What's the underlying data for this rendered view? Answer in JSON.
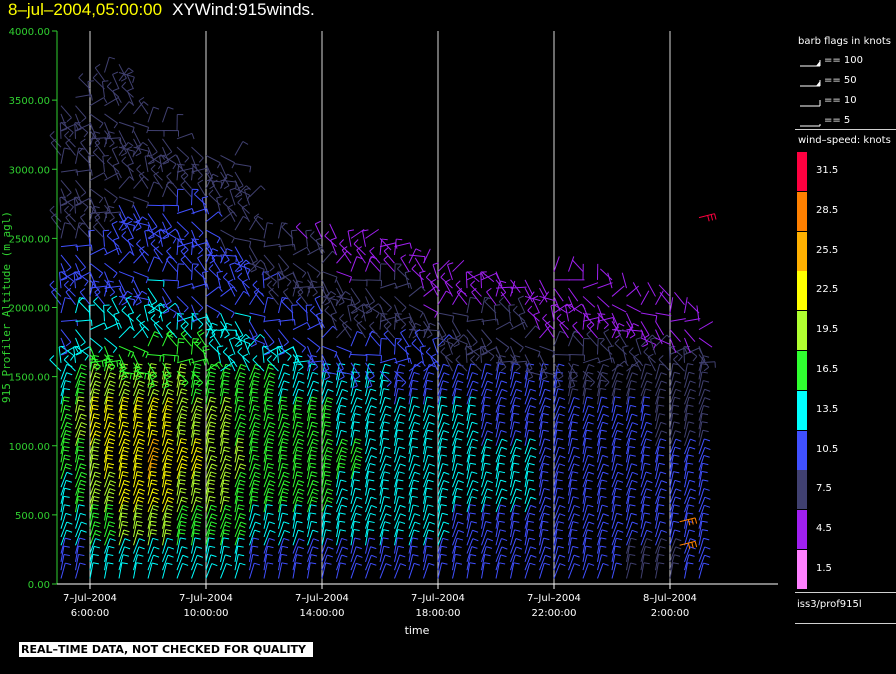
{
  "header": {
    "date_label": "8–jul–2004,05:00:00",
    "product_label": "XYWind:915winds."
  },
  "barb_legend": {
    "title": "barb flags in knots",
    "items": [
      {
        "label": "== 100",
        "value": 100
      },
      {
        "label": "== 50",
        "value": 50
      },
      {
        "label": "== 10",
        "value": 10
      },
      {
        "label": "== 5",
        "value": 5
      }
    ]
  },
  "speed_scale": {
    "title": "wind–speed: knots",
    "levels": [
      {
        "label": "31.5",
        "color": "#ff0040"
      },
      {
        "label": "28.5",
        "color": "#ff8000"
      },
      {
        "label": "25.5",
        "color": "#ffb000"
      },
      {
        "label": "22.5",
        "color": "#ffff00"
      },
      {
        "label": "19.5",
        "color": "#b0ff30"
      },
      {
        "label": "16.5",
        "color": "#30ff30"
      },
      {
        "label": "13.5",
        "color": "#00ffff"
      },
      {
        "label": "10.5",
        "color": "#4050ff"
      },
      {
        "label": "7.5",
        "color": "#404070"
      },
      {
        "label": "4.5",
        "color": "#a020f0"
      },
      {
        "label": "1.5",
        "color": "#ff80ff"
      }
    ]
  },
  "footer": {
    "source_label": "iss3/prof915l",
    "quality_banner": "REAL–TIME DATA, NOT CHECKED FOR QUALITY"
  },
  "chart_data": {
    "type": "wind-barb time-height",
    "ylabel": "915 Profiler Altitude (m agl)",
    "xlabel": "time",
    "ylim": [
      0,
      4000
    ],
    "yticks": [
      "0.00",
      "500.00",
      "1000.00",
      "1500.00",
      "2000.00",
      "2500.00",
      "3000.00",
      "3500.00",
      "4000.00"
    ],
    "xticks": [
      {
        "date": "7–Jul–2004",
        "time": "6:00:00"
      },
      {
        "date": "7–Jul–2004",
        "time": "10:00:00"
      },
      {
        "date": "7–Jul–2004",
        "time": "14:00:00"
      },
      {
        "date": "7–Jul–2004",
        "time": "18:00:00"
      },
      {
        "date": "7–Jul–2004",
        "time": "22:00:00"
      },
      {
        "date": "8–Jul–2004",
        "time": "2:00:00"
      }
    ],
    "x_range": [
      "7–Jul–2004 5:00:00",
      "8–Jul–2004 3:30:00"
    ],
    "grid": "vertical lines at x ticks",
    "observation_interval_minutes": 30,
    "wind_profiles": [
      {
        "time": "7–Jul–2004 5:00:00",
        "top_m": 3500,
        "speed_kt": [
          10,
          12,
          14,
          15,
          16,
          14,
          12,
          11,
          10,
          9,
          8,
          8,
          8,
          7,
          7,
          7
        ]
      },
      {
        "time": "7–Jul–2004 6:00:00",
        "top_m": 3600,
        "speed_kt": [
          12,
          15,
          18,
          20,
          21,
          19,
          16,
          13,
          11,
          9,
          8,
          8,
          7,
          7,
          7,
          6
        ]
      },
      {
        "time": "7–Jul–2004 7:00:00",
        "top_m": 3800,
        "speed_kt": [
          14,
          18,
          22,
          23,
          22,
          19,
          16,
          13,
          11,
          10,
          9,
          8,
          8,
          7,
          7,
          7
        ]
      },
      {
        "time": "7–Jul–2004 8:00:00",
        "top_m": 3400,
        "speed_kt": [
          14,
          19,
          22,
          24,
          22,
          20,
          17,
          14,
          12,
          10,
          9,
          8,
          8,
          7,
          7,
          6
        ]
      },
      {
        "time": "7–Jul–2004 9:00:00",
        "top_m": 3300,
        "speed_kt": [
          13,
          17,
          20,
          22,
          20,
          18,
          15,
          13,
          11,
          10,
          9,
          8,
          7,
          7,
          6,
          6
        ]
      },
      {
        "time": "7–Jul–2004 10:00:00",
        "top_m": 3100,
        "speed_kt": [
          13,
          16,
          19,
          20,
          19,
          17,
          15,
          13,
          11,
          10,
          9,
          8,
          7,
          7,
          6,
          6
        ]
      },
      {
        "time": "7–Jul–2004 11:00:00",
        "top_m": 3100,
        "speed_kt": [
          12,
          15,
          17,
          18,
          17,
          16,
          14,
          12,
          10,
          9,
          8,
          7,
          7,
          6,
          6,
          5
        ]
      },
      {
        "time": "7–Jul–2004 12:00:00",
        "top_m": 2600,
        "speed_kt": [
          11,
          14,
          16,
          17,
          17,
          15,
          13,
          11,
          9,
          8,
          7,
          6,
          6,
          5,
          5,
          4
        ]
      },
      {
        "time": "7–Jul–2004 13:00:00",
        "top_m": 2500,
        "speed_kt": [
          11,
          13,
          15,
          16,
          16,
          14,
          12,
          10,
          8,
          7,
          6,
          5,
          5,
          4,
          4,
          3
        ]
      },
      {
        "time": "7–Jul–2004 14:00:00",
        "top_m": 2500,
        "speed_kt": [
          11,
          13,
          15,
          16,
          15,
          13,
          11,
          9,
          7,
          6,
          5,
          4,
          4,
          3,
          3,
          3
        ]
      },
      {
        "time": "7–Jul–2004 15:00:00",
        "top_m": 2500,
        "speed_kt": [
          10,
          12,
          14,
          15,
          14,
          12,
          10,
          8,
          6,
          5,
          4,
          4,
          3,
          3,
          3,
          2
        ]
      },
      {
        "time": "7–Jul–2004 16:00:00",
        "top_m": 2500,
        "speed_kt": [
          10,
          12,
          14,
          14,
          13,
          12,
          10,
          8,
          6,
          5,
          4,
          3,
          3,
          3,
          2,
          2
        ]
      },
      {
        "time": "7–Jul–2004 17:00:00",
        "top_m": 2400,
        "speed_kt": [
          10,
          12,
          13,
          14,
          13,
          11,
          9,
          7,
          6,
          5,
          4,
          3,
          3,
          2,
          2,
          2
        ]
      },
      {
        "time": "7–Jul–2004 18:00:00",
        "top_m": 2300,
        "speed_kt": [
          10,
          12,
          13,
          13,
          12,
          11,
          9,
          7,
          5,
          4,
          4,
          3,
          3,
          2,
          2,
          2
        ]
      },
      {
        "time": "7–Jul–2004 19:00:00",
        "top_m": 2300,
        "speed_kt": [
          10,
          11,
          12,
          13,
          12,
          10,
          8,
          6,
          5,
          4,
          3,
          3,
          2,
          2,
          2,
          2
        ]
      },
      {
        "time": "7–Jul–2004 20:00:00",
        "top_m": 2300,
        "speed_kt": [
          9,
          11,
          12,
          12,
          11,
          10,
          8,
          6,
          5,
          4,
          3,
          3,
          2,
          2,
          2,
          2
        ]
      },
      {
        "time": "7–Jul–2004 21:00:00",
        "top_m": 2200,
        "speed_kt": [
          9,
          11,
          12,
          12,
          11,
          9,
          7,
          6,
          4,
          4,
          3,
          3,
          2,
          2,
          2,
          2
        ]
      },
      {
        "time": "7–Jul–2004 22:00:00",
        "top_m": 2300,
        "speed_kt": [
          9,
          10,
          11,
          11,
          10,
          9,
          7,
          5,
          4,
          3,
          3,
          2,
          2,
          2,
          2,
          2
        ]
      },
      {
        "time": "7–Jul–2004 23:00:00",
        "top_m": 2300,
        "speed_kt": [
          9,
          10,
          11,
          11,
          10,
          8,
          7,
          5,
          4,
          3,
          3,
          2,
          2,
          2,
          2,
          2
        ]
      },
      {
        "time": "8–Jul–2004 0:00:00",
        "top_m": 2200,
        "speed_kt": [
          9,
          10,
          10,
          10,
          9,
          8,
          6,
          5,
          4,
          3,
          3,
          2,
          2,
          2,
          2,
          2
        ]
      },
      {
        "time": "8–Jul–2004 1:00:00",
        "top_m": 2100,
        "speed_kt": [
          8,
          9,
          10,
          10,
          9,
          7,
          6,
          5,
          4,
          3,
          3,
          2,
          2,
          2,
          2,
          2
        ]
      },
      {
        "time": "8–Jul–2004 2:00:00",
        "top_m": 2100,
        "speed_kt": [
          8,
          9,
          9,
          9,
          8,
          7,
          6,
          4,
          3,
          3,
          2,
          2,
          2,
          2,
          2,
          2
        ]
      },
      {
        "time": "8–Jul–2004 3:00:00",
        "top_m": 2000,
        "speed_kt": [
          10,
          10,
          9,
          9,
          8,
          7,
          6,
          4,
          3,
          3,
          2,
          2,
          2,
          2,
          2,
          2
        ]
      }
    ],
    "isolated_barbs": [
      {
        "time": "8–Jul–2004 3:00:00",
        "height_m": 2650,
        "speed_kt": 31
      },
      {
        "time": "8–Jul–2004 2:20:00",
        "height_m": 450,
        "speed_kt": 29
      },
      {
        "time": "8–Jul–2004 2:20:00",
        "height_m": 280,
        "speed_kt": 27
      }
    ]
  }
}
